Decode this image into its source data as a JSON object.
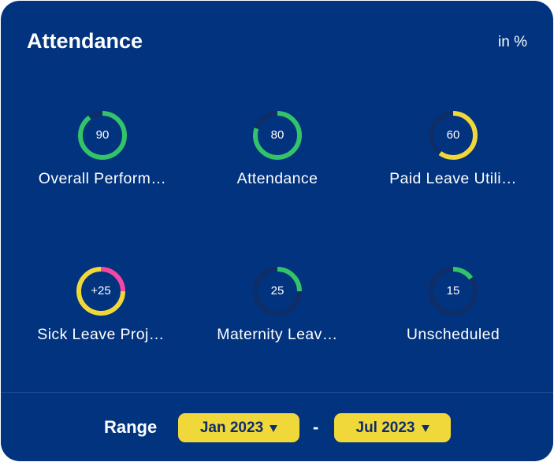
{
  "colors": {
    "background": "#02337f",
    "track": "#0f2d66",
    "green": "#33c46a",
    "yellow": "#f0d83a",
    "pink": "#f447a3",
    "text": "#ffffff"
  },
  "header": {
    "title": "Attendance",
    "unit": "in %"
  },
  "metrics": [
    {
      "label": "Overall Perform…",
      "value_text": "90",
      "segments": [
        {
          "fraction": 0.9,
          "color": "green"
        }
      ]
    },
    {
      "label": "Attendance",
      "value_text": "80",
      "segments": [
        {
          "fraction": 0.8,
          "color": "green"
        }
      ]
    },
    {
      "label": "Paid Leave Utili…",
      "value_text": "60",
      "segments": [
        {
          "fraction": 0.6,
          "color": "yellow"
        }
      ]
    },
    {
      "label": "Sick Leave Proj…",
      "value_text": "+25",
      "segments": [
        {
          "fraction": 0.25,
          "color": "pink"
        },
        {
          "fraction": 0.75,
          "color": "yellow"
        }
      ]
    },
    {
      "label": "Maternity Leav…",
      "value_text": "25",
      "segments": [
        {
          "fraction": 0.25,
          "color": "green"
        }
      ]
    },
    {
      "label": "Unscheduled",
      "value_text": "15",
      "segments": [
        {
          "fraction": 0.15,
          "color": "green"
        }
      ]
    }
  ],
  "range": {
    "label": "Range",
    "start": "Jan 2023",
    "separator": "-",
    "end": "Jul 2023"
  }
}
